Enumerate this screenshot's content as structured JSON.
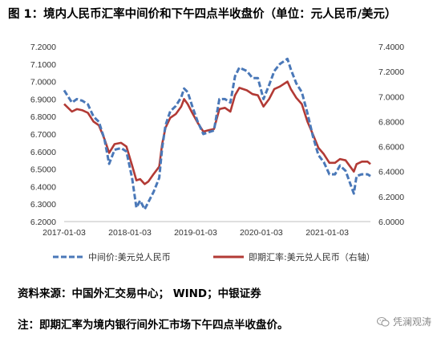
{
  "figure": {
    "title": "图 1：境内人民币汇率中间价和下午四点半收盘价（单位：元人民币/美元）",
    "source": "资料来源：中国外汇交易中心；  WIND；中银证券",
    "note": "注：即期汇率为境内银行间外汇市场下午四点半收盘价。",
    "watermark": "凭澜观涛"
  },
  "chart_data": {
    "type": "line",
    "x_tick_labels": [
      "2017-01-03",
      "2018-01-03",
      "2019-01-03",
      "2020-01-03",
      "2021-01-03"
    ],
    "x_range": [
      "2017-01-03",
      "2021-08-31"
    ],
    "y_left": {
      "range": [
        6.2,
        7.2
      ],
      "tick_labels": [
        "6.2000",
        "6.3000",
        "6.4000",
        "6.5000",
        "6.6000",
        "6.7000",
        "6.8000",
        "6.9000",
        "7.0000",
        "7.1000",
        "7.2000"
      ]
    },
    "y_right": {
      "range": [
        6.0,
        7.4
      ],
      "tick_labels": [
        "6.0000",
        "6.2000",
        "6.4000",
        "6.6000",
        "6.8000",
        "7.0000",
        "7.2000",
        "7.4000"
      ]
    },
    "grid": false,
    "legend_position": "bottom",
    "series": [
      {
        "name": "中间价:美元兑人民币",
        "axis": "left",
        "style": "dashed",
        "color": "#4a78b8",
        "x": [
          "2017-01-03",
          "2017-02-15",
          "2017-03-15",
          "2017-04-15",
          "2017-05-15",
          "2017-06-15",
          "2017-07-15",
          "2017-08-15",
          "2017-09-10",
          "2017-10-10",
          "2017-11-15",
          "2017-12-15",
          "2018-01-15",
          "2018-02-08",
          "2018-03-01",
          "2018-03-26",
          "2018-04-15",
          "2018-05-15",
          "2018-06-15",
          "2018-07-01",
          "2018-07-20",
          "2018-08-15",
          "2018-09-15",
          "2018-10-15",
          "2018-10-31",
          "2018-11-20",
          "2018-12-15",
          "2019-01-15",
          "2019-02-15",
          "2019-03-15",
          "2019-04-15",
          "2019-05-15",
          "2019-06-15",
          "2019-07-15",
          "2019-08-10",
          "2019-09-03",
          "2019-10-15",
          "2019-11-15",
          "2019-12-15",
          "2020-01-15",
          "2020-02-15",
          "2020-03-15",
          "2020-04-15",
          "2020-05-27",
          "2020-06-15",
          "2020-07-15",
          "2020-08-15",
          "2020-09-15",
          "2020-10-15",
          "2020-11-15",
          "2020-12-15",
          "2021-01-15",
          "2021-02-15",
          "2021-03-15",
          "2021-04-15",
          "2021-05-31",
          "2021-06-15",
          "2021-07-15",
          "2021-08-15",
          "2021-08-31"
        ],
        "values": [
          6.95,
          6.88,
          6.9,
          6.89,
          6.87,
          6.8,
          6.77,
          6.67,
          6.53,
          6.61,
          6.62,
          6.6,
          6.45,
          6.28,
          6.32,
          6.27,
          6.31,
          6.37,
          6.45,
          6.62,
          6.75,
          6.83,
          6.86,
          6.91,
          6.96,
          6.94,
          6.86,
          6.77,
          6.7,
          6.71,
          6.72,
          6.9,
          6.9,
          6.88,
          7.03,
          7.08,
          7.06,
          7.02,
          7.02,
          6.9,
          6.98,
          7.06,
          7.1,
          7.13,
          7.07,
          6.99,
          6.94,
          6.82,
          6.69,
          6.58,
          6.54,
          6.47,
          6.47,
          6.52,
          6.49,
          6.36,
          6.46,
          6.47,
          6.47,
          6.46
        ]
      },
      {
        "name": "即期汇率:美元兑人民币（右轴）",
        "axis": "right",
        "style": "solid",
        "color": "#b23a35",
        "x": [
          "2017-01-03",
          "2017-02-15",
          "2017-03-15",
          "2017-04-15",
          "2017-05-15",
          "2017-06-15",
          "2017-07-15",
          "2017-08-15",
          "2017-09-10",
          "2017-10-10",
          "2017-11-15",
          "2017-12-15",
          "2018-01-15",
          "2018-02-08",
          "2018-03-01",
          "2018-03-26",
          "2018-04-15",
          "2018-05-15",
          "2018-06-15",
          "2018-07-01",
          "2018-07-20",
          "2018-08-15",
          "2018-09-15",
          "2018-10-15",
          "2018-10-31",
          "2018-11-20",
          "2018-12-15",
          "2019-01-15",
          "2019-02-15",
          "2019-03-15",
          "2019-04-15",
          "2019-05-15",
          "2019-06-15",
          "2019-07-15",
          "2019-08-10",
          "2019-09-03",
          "2019-10-15",
          "2019-11-15",
          "2019-12-15",
          "2020-01-15",
          "2020-02-15",
          "2020-03-15",
          "2020-04-15",
          "2020-05-27",
          "2020-06-15",
          "2020-07-15",
          "2020-08-15",
          "2020-09-15",
          "2020-10-15",
          "2020-11-15",
          "2020-12-15",
          "2021-01-15",
          "2021-02-15",
          "2021-03-15",
          "2021-04-15",
          "2021-05-31",
          "2021-06-15",
          "2021-07-15",
          "2021-08-15",
          "2021-08-31"
        ],
        "values": [
          6.94,
          6.88,
          6.9,
          6.89,
          6.87,
          6.8,
          6.77,
          6.66,
          6.55,
          6.62,
          6.63,
          6.6,
          6.45,
          6.33,
          6.34,
          6.3,
          6.32,
          6.38,
          6.44,
          6.62,
          6.75,
          6.83,
          6.86,
          6.92,
          6.98,
          6.94,
          6.87,
          6.79,
          6.72,
          6.73,
          6.74,
          6.9,
          6.91,
          6.88,
          7.01,
          7.07,
          7.05,
          7.02,
          7.01,
          6.92,
          6.98,
          7.06,
          7.08,
          7.12,
          7.06,
          6.99,
          6.94,
          6.8,
          6.7,
          6.59,
          6.54,
          6.47,
          6.47,
          6.5,
          6.49,
          6.4,
          6.46,
          6.48,
          6.48,
          6.46
        ]
      }
    ]
  }
}
